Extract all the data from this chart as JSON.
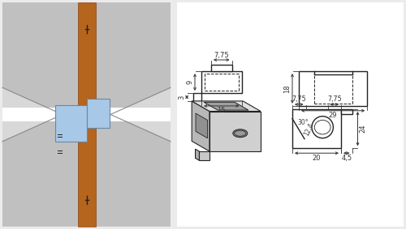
{
  "bg_color": "#ebebeb",
  "left_bg": "#d8d8d8",
  "white": "#ffffff",
  "brown": "#b5651d",
  "brown_edge": "#8B4513",
  "blue": "#a8c8e8",
  "blue_edge": "#6688aa",
  "lc": "#222222",
  "dc": "#444444",
  "gray_iso": "#c8c8c8",
  "gray_iso_top": "#e0e0e0",
  "gray_iso_right": "#b8b8b8",
  "fig_w": 5.0,
  "fig_h": 2.83,
  "dpi": 100
}
